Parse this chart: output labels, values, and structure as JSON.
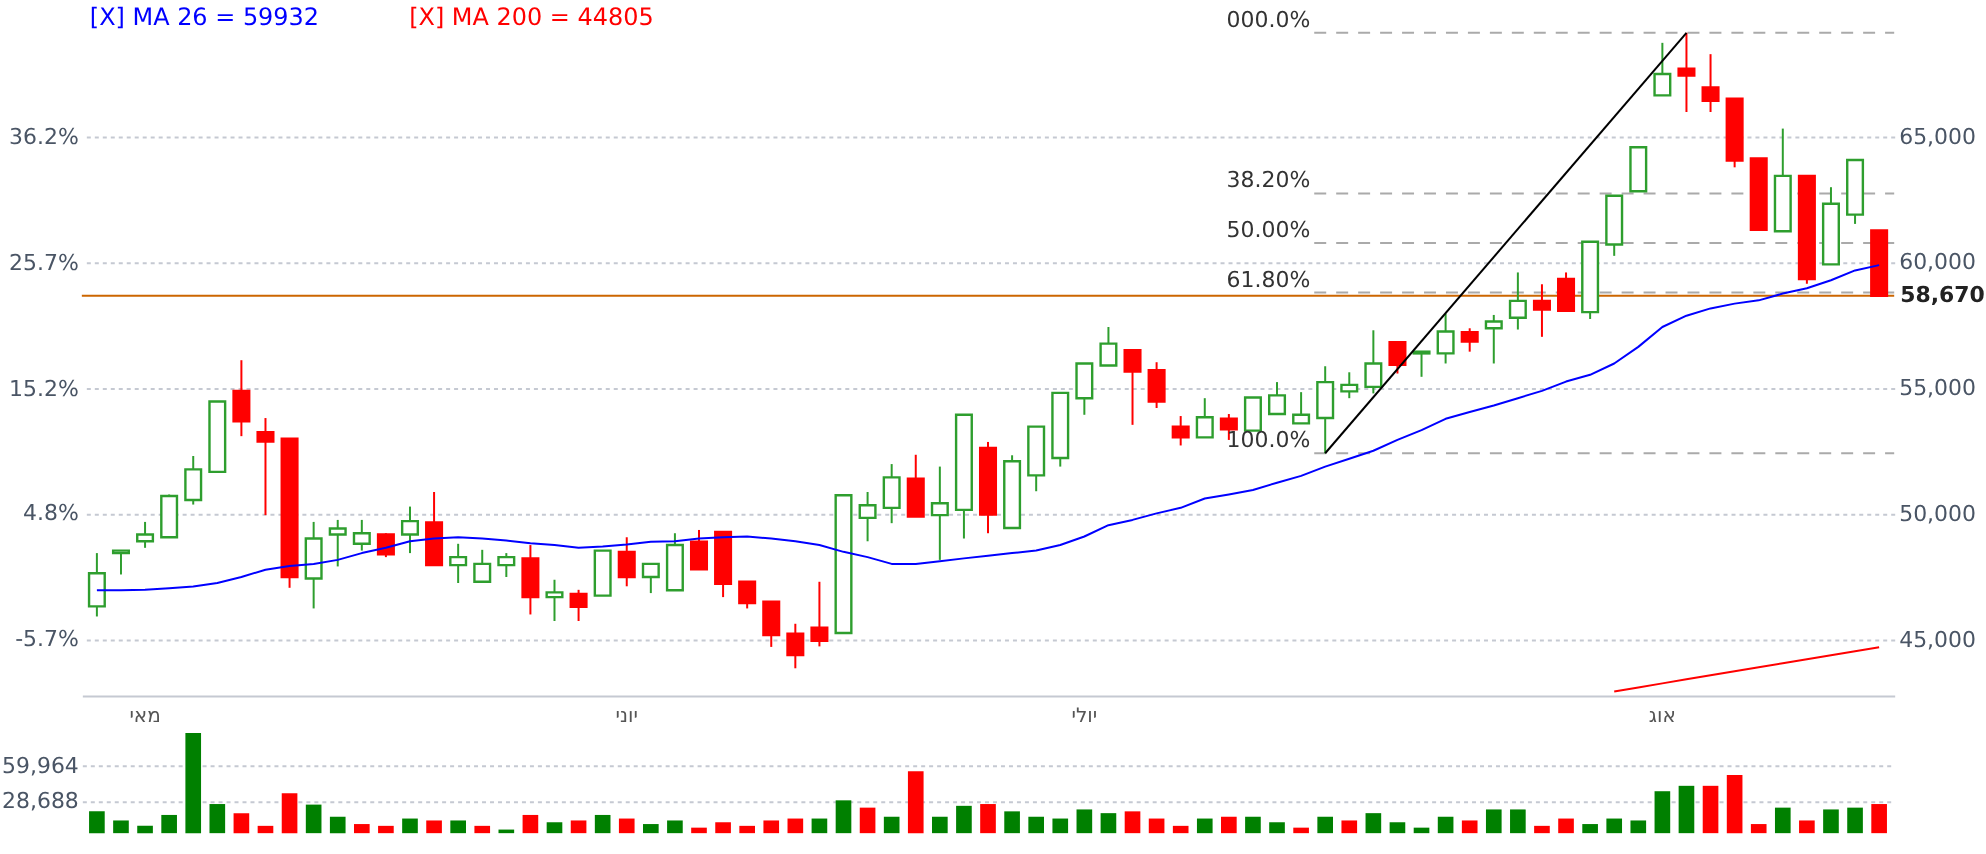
{
  "chart_data": [
    {
      "type": "candlestick",
      "categories": [
        null,
        null,
        "מאי",
        null,
        null,
        null,
        null,
        null,
        null,
        null,
        null,
        null,
        null,
        null,
        null,
        null,
        null,
        null,
        null,
        null,
        null,
        null,
        "יוני",
        null,
        null,
        null,
        null,
        null,
        null,
        null,
        null,
        null,
        null,
        null,
        null,
        null,
        null,
        null,
        null,
        null,
        null,
        "יולי",
        null,
        null,
        null,
        null,
        null,
        null,
        null,
        null,
        null,
        null,
        null,
        null,
        null,
        null,
        null,
        null,
        null,
        null,
        null,
        null,
        null,
        null,
        null,
        "אוג",
        null,
        null,
        null,
        null,
        null,
        null,
        null,
        null,
        null
      ],
      "ohlc": [
        [
          46320,
          48440,
          45920,
          47640
        ],
        [
          48440,
          48540,
          47590,
          48540
        ],
        [
          48910,
          49680,
          48650,
          49180
        ],
        [
          49070,
          50770,
          49070,
          50710
        ],
        [
          50550,
          52300,
          50370,
          51770
        ],
        [
          51670,
          54470,
          51670,
          54470
        ],
        [
          54890,
          56110,
          53090,
          53680
        ],
        [
          53250,
          53810,
          49950,
          52880
        ],
        [
          52990,
          52990,
          47060,
          47490
        ],
        [
          47430,
          49680,
          46240,
          49020
        ],
        [
          49180,
          49760,
          47910,
          49420
        ],
        [
          48810,
          49760,
          48540,
          49230
        ],
        [
          49180,
          49230,
          48280,
          48390
        ],
        [
          49180,
          50290,
          48440,
          49710
        ],
        [
          49660,
          50870,
          47960,
          47960
        ],
        [
          47960,
          48810,
          47250,
          48280
        ],
        [
          47300,
          48570,
          47300,
          48010
        ],
        [
          47960,
          48440,
          47490,
          48280
        ],
        [
          48230,
          48760,
          46000,
          46690
        ],
        [
          46690,
          47380,
          45740,
          46880
        ],
        [
          46820,
          46980,
          45740,
          46300
        ],
        [
          46750,
          48540,
          46750,
          48540
        ],
        [
          48490,
          49070,
          47120,
          47490
        ],
        [
          47490,
          48010,
          46850,
          48010
        ],
        [
          46960,
          49230,
          46960,
          48760
        ],
        [
          48890,
          49360,
          47800,
          47800
        ],
        [
          49280,
          49280,
          46690,
          47220
        ],
        [
          47300,
          47300,
          46240,
          46450
        ],
        [
          46510,
          46510,
          44710,
          45180
        ],
        [
          45240,
          45630,
          43860,
          44390
        ],
        [
          45470,
          47300,
          44730,
          44950
        ],
        [
          45260,
          50740,
          45260,
          50740
        ],
        [
          49840,
          50870,
          48910,
          50340
        ],
        [
          50240,
          51980,
          49630,
          51450
        ],
        [
          51400,
          52350,
          49890,
          49890
        ],
        [
          49950,
          51880,
          48170,
          50420
        ],
        [
          50160,
          53940,
          49020,
          53940
        ],
        [
          52620,
          52860,
          49230,
          49970
        ],
        [
          49440,
          52330,
          49440,
          52090
        ],
        [
          51530,
          53470,
          50900,
          53470
        ],
        [
          52220,
          54810,
          51880,
          54810
        ],
        [
          54600,
          55980,
          53940,
          55980
        ],
        [
          55900,
          57430,
          55900,
          56770
        ],
        [
          56510,
          56510,
          53540,
          55660
        ],
        [
          55710,
          56030,
          54210,
          54470
        ],
        [
          53470,
          53890,
          52720,
          53040
        ],
        [
          53040,
          54600,
          53040,
          53840
        ],
        [
          53780,
          53970,
          52940,
          53360
        ],
        [
          53310,
          54630,
          53310,
          54630
        ],
        [
          53970,
          55240,
          53970,
          54710
        ],
        [
          53600,
          54840,
          53600,
          53940
        ],
        [
          53810,
          55870,
          52410,
          55240
        ],
        [
          54870,
          55630,
          54600,
          55130
        ],
        [
          55050,
          57300,
          54790,
          55980
        ],
        [
          56830,
          56830,
          55580,
          55930
        ],
        [
          56380,
          56450,
          55450,
          56450
        ],
        [
          56380,
          57960,
          55980,
          57250
        ],
        [
          57220,
          57380,
          56450,
          56850
        ],
        [
          57380,
          57910,
          55980,
          57650
        ],
        [
          57800,
          59600,
          57330,
          58470
        ],
        [
          58470,
          59130,
          57040,
          58120
        ],
        [
          59340,
          59600,
          58070,
          58070
        ],
        [
          58020,
          60820,
          57750,
          60820
        ],
        [
          60710,
          62650,
          60260,
          62650
        ],
        [
          62830,
          64580,
          62830,
          64580
        ],
        [
          66640,
          68730,
          66640,
          67490
        ],
        [
          67700,
          69130,
          65980,
          67430
        ],
        [
          66960,
          68280,
          65980,
          66430
        ],
        [
          66510,
          66510,
          63780,
          64050
        ],
        [
          64130,
          64130,
          61300,
          61300
        ],
        [
          61240,
          65320,
          61240,
          63440
        ],
        [
          63440,
          63440,
          59150,
          59340
        ],
        [
          59920,
          62990,
          59920,
          62330
        ],
        [
          61900,
          64070,
          61530,
          64070
        ],
        [
          61270,
          61270,
          58670,
          58670
        ]
      ],
      "series": [
        {
          "name": "[X] MA 26 = 59932",
          "type": "line",
          "color": "#0000ff",
          "values": [
            46960,
            46960,
            46980,
            47040,
            47110,
            47250,
            47490,
            47780,
            47930,
            48010,
            48170,
            48440,
            48650,
            48910,
            49020,
            49070,
            49020,
            48940,
            48830,
            48760,
            48650,
            48700,
            48780,
            48890,
            48910,
            49020,
            49070,
            49100,
            49020,
            48910,
            48760,
            48490,
            48280,
            48010,
            48010,
            48120,
            48230,
            48330,
            48440,
            48540,
            48760,
            49100,
            49550,
            49760,
            50020,
            50240,
            50610,
            50770,
            50950,
            51240,
            51510,
            51880,
            52190,
            52510,
            52940,
            53330,
            53780,
            54050,
            54310,
            54600,
            54890,
            55260,
            55530,
            55980,
            56640,
            57430,
            57880,
            58170,
            58360,
            58490,
            58760,
            58970,
            59290,
            59680,
            59890
          ]
        },
        {
          "name": "[X] MA 200 = 44805",
          "type": "line",
          "color": "#ff0000",
          "values": [
            null,
            null,
            null,
            null,
            null,
            null,
            null,
            null,
            null,
            null,
            null,
            null,
            null,
            null,
            null,
            null,
            null,
            null,
            null,
            null,
            null,
            null,
            null,
            null,
            null,
            null,
            null,
            null,
            null,
            null,
            null,
            null,
            null,
            null,
            null,
            null,
            null,
            null,
            null,
            null,
            null,
            null,
            null,
            null,
            null,
            null,
            null,
            null,
            null,
            null,
            null,
            null,
            null,
            null,
            null,
            null,
            null,
            null,
            null,
            null,
            null,
            null,
            null,
            42940,
            43100,
            43260,
            43420,
            43580,
            43740,
            43900,
            44060,
            44220,
            44380,
            44540,
            44700
          ]
        },
        {
          "type": "line",
          "color": "#000000",
          "values": [
            null,
            null,
            null,
            null,
            null,
            null,
            null,
            null,
            null,
            null,
            null,
            null,
            null,
            null,
            null,
            null,
            null,
            null,
            null,
            null,
            null,
            null,
            null,
            null,
            null,
            null,
            null,
            null,
            null,
            null,
            null,
            null,
            null,
            null,
            null,
            null,
            null,
            null,
            null,
            null,
            null,
            null,
            null,
            null,
            null,
            null,
            null,
            null,
            null,
            null,
            null,
            52410,
            null,
            null,
            null,
            null,
            null,
            null,
            null,
            null,
            null,
            null,
            null,
            null,
            null,
            null,
            69130,
            null,
            null,
            null,
            null,
            null,
            null,
            null,
            null
          ]
        }
      ],
      "ylim": [
        42780,
        70400
      ],
      "yticks": [
        {
          "value": 45000,
          "label": "45,000"
        },
        {
          "value": 50000,
          "label": "50,000"
        },
        {
          "value": 55000,
          "label": "55,000"
        },
        {
          "value": 60000,
          "label": "60,000"
        },
        {
          "value": 65000,
          "label": "65,000"
        }
      ],
      "y2lim": [
        -10.36,
        47.51
      ],
      "y2ticks": [
        {
          "value": -5.7,
          "label": "-5.7%"
        },
        {
          "value": 4.8,
          "label": "4.8%"
        },
        {
          "value": 15.2,
          "label": "15.2%"
        },
        {
          "value": 25.7,
          "label": "25.7%"
        },
        {
          "value": 36.2,
          "label": "36.2%"
        }
      ],
      "ref_lines": [
        {
          "axis": "y",
          "value": 69130,
          "color": "#aaaaaa",
          "line_style": "dashed"
        },
        {
          "axis": "y",
          "value": 62740,
          "color": "#aaaaaa",
          "line_style": "dashed"
        },
        {
          "axis": "y",
          "value": 60770,
          "color": "#aaaaaa",
          "line_style": "dashed"
        },
        {
          "axis": "y",
          "value": 58800,
          "color": "#aaaaaa",
          "line_style": "dashed"
        },
        {
          "axis": "y",
          "value": 52410,
          "color": "#aaaaaa",
          "line_style": "dashed"
        },
        {
          "axis": "y",
          "value": 58670,
          "label": "58,670",
          "color": "#cc6600",
          "line_style": "solid"
        }
      ],
      "annotations": [
        "000.0%",
        "38.20%",
        "50.00%",
        "61.80%",
        "100.0%"
      ],
      "grid": "y",
      "legend": "top left"
    },
    {
      "type": "bar",
      "categories": [
        null,
        null,
        null,
        null,
        null,
        null,
        null,
        null,
        null,
        null,
        null,
        null,
        null,
        null,
        null,
        null,
        null,
        null,
        null,
        null,
        null,
        null,
        null,
        null,
        null,
        null,
        null,
        null,
        null,
        null,
        null,
        null,
        null,
        null,
        null,
        null,
        null,
        null,
        null,
        null,
        null,
        null,
        null,
        null,
        null,
        null,
        null,
        null,
        null,
        null,
        null,
        null,
        null,
        null,
        null,
        null,
        null,
        null,
        null,
        null,
        null,
        null,
        null,
        null,
        null,
        null,
        null,
        null,
        null,
        null,
        null,
        null,
        null,
        null,
        null
      ],
      "values": [
        19400,
        11300,
        6500,
        16200,
        89100,
        25900,
        17800,
        6500,
        35600,
        25400,
        14600,
        8100,
        6500,
        13000,
        11300,
        11300,
        6500,
        3200,
        16200,
        9700,
        11300,
        16200,
        13000,
        8100,
        11300,
        4900,
        9700,
        6500,
        11300,
        13000,
        13000,
        29200,
        22700,
        14600,
        55100,
        14600,
        24300,
        25900,
        19400,
        14600,
        13000,
        21100,
        17800,
        19400,
        13000,
        6500,
        13000,
        14600,
        14600,
        9700,
        4900,
        14600,
        11300,
        17800,
        9700,
        4900,
        14600,
        11300,
        21100,
        21100,
        6500,
        13000,
        8100,
        13000,
        11300,
        37300,
        42100,
        42100,
        51800,
        8100,
        22700,
        11300,
        21100,
        22700,
        25900
      ],
      "colors": [
        "#008000",
        "#008000",
        "#008000",
        "#008000",
        "#008000",
        "#008000",
        "#ff0000",
        "#ff0000",
        "#ff0000",
        "#008000",
        "#008000",
        "#ff0000",
        "#ff0000",
        "#008000",
        "#ff0000",
        "#008000",
        "#ff0000",
        "#008000",
        "#ff0000",
        "#008000",
        "#ff0000",
        "#008000",
        "#ff0000",
        "#008000",
        "#008000",
        "#ff0000",
        "#ff0000",
        "#ff0000",
        "#ff0000",
        "#ff0000",
        "#008000",
        "#008000",
        "#ff0000",
        "#008000",
        "#ff0000",
        "#008000",
        "#008000",
        "#ff0000",
        "#008000",
        "#008000",
        "#008000",
        "#008000",
        "#008000",
        "#ff0000",
        "#ff0000",
        "#ff0000",
        "#008000",
        "#ff0000",
        "#008000",
        "#008000",
        "#ff0000",
        "#008000",
        "#ff0000",
        "#008000",
        "#008000",
        "#008000",
        "#008000",
        "#ff0000",
        "#008000",
        "#008000",
        "#ff0000",
        "#ff0000",
        "#008000",
        "#008000",
        "#008000",
        "#008000",
        "#008000",
        "#ff0000",
        "#ff0000",
        "#ff0000",
        "#008000",
        "#ff0000",
        "#008000",
        "#008000",
        "#ff0000"
      ],
      "ylim": [
        0,
        92300
      ],
      "yticks": [
        {
          "value": 28688,
          "label": "28,688"
        },
        {
          "value": 59964,
          "label": "59,964"
        }
      ],
      "grid": "y",
      "tick_labels": "y"
    }
  ]
}
